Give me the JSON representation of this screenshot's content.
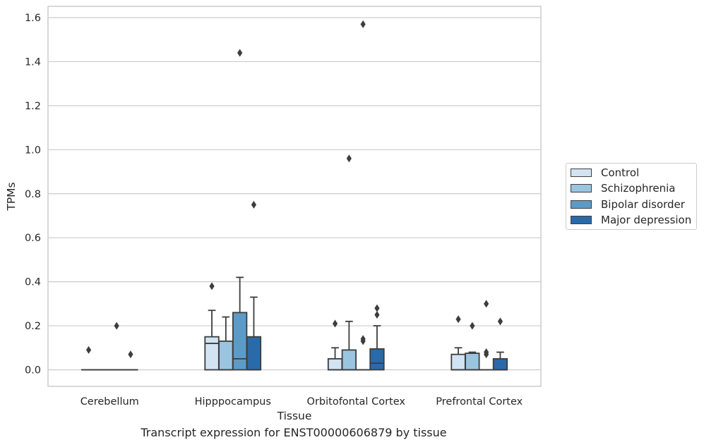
{
  "chart_data": {
    "type": "box",
    "xlabel": "Tissue",
    "ylabel": "TPMs",
    "caption": "Transcript expression for ENST00000606879 by tissue",
    "categories": [
      "Cerebellum",
      "Hipppocampus",
      "Orbitofontal Cortex",
      "Prefrontal Cortex"
    ],
    "ylim": [
      -0.08,
      1.65
    ],
    "yticks": [
      0.0,
      0.2,
      0.4,
      0.6,
      0.8,
      1.0,
      1.2,
      1.4,
      1.6
    ],
    "ytick_labels": [
      "0.0",
      "0.2",
      "0.4",
      "0.6",
      "0.8",
      "1.0",
      "1.2",
      "1.4",
      "1.6"
    ],
    "grid": "horizontal",
    "legend_position": "right",
    "series": [
      {
        "name": "Control",
        "color": "#d2e3f2",
        "boxes": [
          {
            "q1": 0.0,
            "median": 0.0,
            "q3": 0.0,
            "whislo": 0.0,
            "whishi": 0.0,
            "fliers": [
              0.09
            ]
          },
          {
            "q1": 0.0,
            "median": 0.12,
            "q3": 0.15,
            "whislo": 0.0,
            "whishi": 0.27,
            "fliers": [
              0.38
            ]
          },
          {
            "q1": 0.0,
            "median": 0.0,
            "q3": 0.05,
            "whislo": 0.0,
            "whishi": 0.1,
            "fliers": [
              0.21
            ]
          },
          {
            "q1": 0.0,
            "median": 0.0,
            "q3": 0.07,
            "whislo": 0.0,
            "whishi": 0.1,
            "fliers": [
              0.23
            ]
          }
        ]
      },
      {
        "name": "Schizophrenia",
        "color": "#9ac5e0",
        "boxes": [
          {
            "q1": 0.0,
            "median": 0.0,
            "q3": 0.0,
            "whislo": 0.0,
            "whishi": 0.0,
            "fliers": []
          },
          {
            "q1": 0.0,
            "median": 0.0,
            "q3": 0.13,
            "whislo": 0.0,
            "whishi": 0.24,
            "fliers": []
          },
          {
            "q1": 0.0,
            "median": 0.0,
            "q3": 0.09,
            "whislo": 0.0,
            "whishi": 0.22,
            "fliers": [
              0.96
            ]
          },
          {
            "q1": 0.0,
            "median": 0.0,
            "q3": 0.075,
            "whislo": 0.0,
            "whishi": 0.08,
            "fliers": [
              0.2
            ]
          }
        ]
      },
      {
        "name": "Bipolar disorder",
        "color": "#5d9bc7",
        "boxes": [
          {
            "q1": 0.0,
            "median": 0.0,
            "q3": 0.0,
            "whislo": 0.0,
            "whishi": 0.0,
            "fliers": [
              0.2
            ]
          },
          {
            "q1": 0.0,
            "median": 0.05,
            "q3": 0.26,
            "whislo": 0.0,
            "whishi": 0.42,
            "fliers": [
              1.44
            ]
          },
          {
            "q1": 0.0,
            "median": 0.0,
            "q3": 0.0,
            "whislo": 0.0,
            "whishi": 0.0,
            "fliers": [
              0.13,
              0.14,
              1.57
            ]
          },
          {
            "q1": 0.0,
            "median": 0.0,
            "q3": 0.0,
            "whislo": 0.0,
            "whishi": 0.0,
            "fliers": [
              0.07,
              0.08,
              0.3
            ]
          }
        ]
      },
      {
        "name": "Major depression",
        "color": "#2a6aa8",
        "boxes": [
          {
            "q1": 0.0,
            "median": 0.0,
            "q3": 0.0,
            "whislo": 0.0,
            "whishi": 0.0,
            "fliers": [
              0.07
            ]
          },
          {
            "q1": 0.0,
            "median": 0.0,
            "q3": 0.15,
            "whislo": 0.0,
            "whishi": 0.33,
            "fliers": [
              0.75
            ]
          },
          {
            "q1": 0.0,
            "median": 0.03,
            "q3": 0.095,
            "whislo": 0.0,
            "whishi": 0.2,
            "fliers": [
              0.25,
              0.28
            ]
          },
          {
            "q1": 0.0,
            "median": 0.0,
            "q3": 0.05,
            "whislo": 0.0,
            "whishi": 0.08,
            "fliers": [
              0.22
            ]
          }
        ]
      }
    ]
  }
}
